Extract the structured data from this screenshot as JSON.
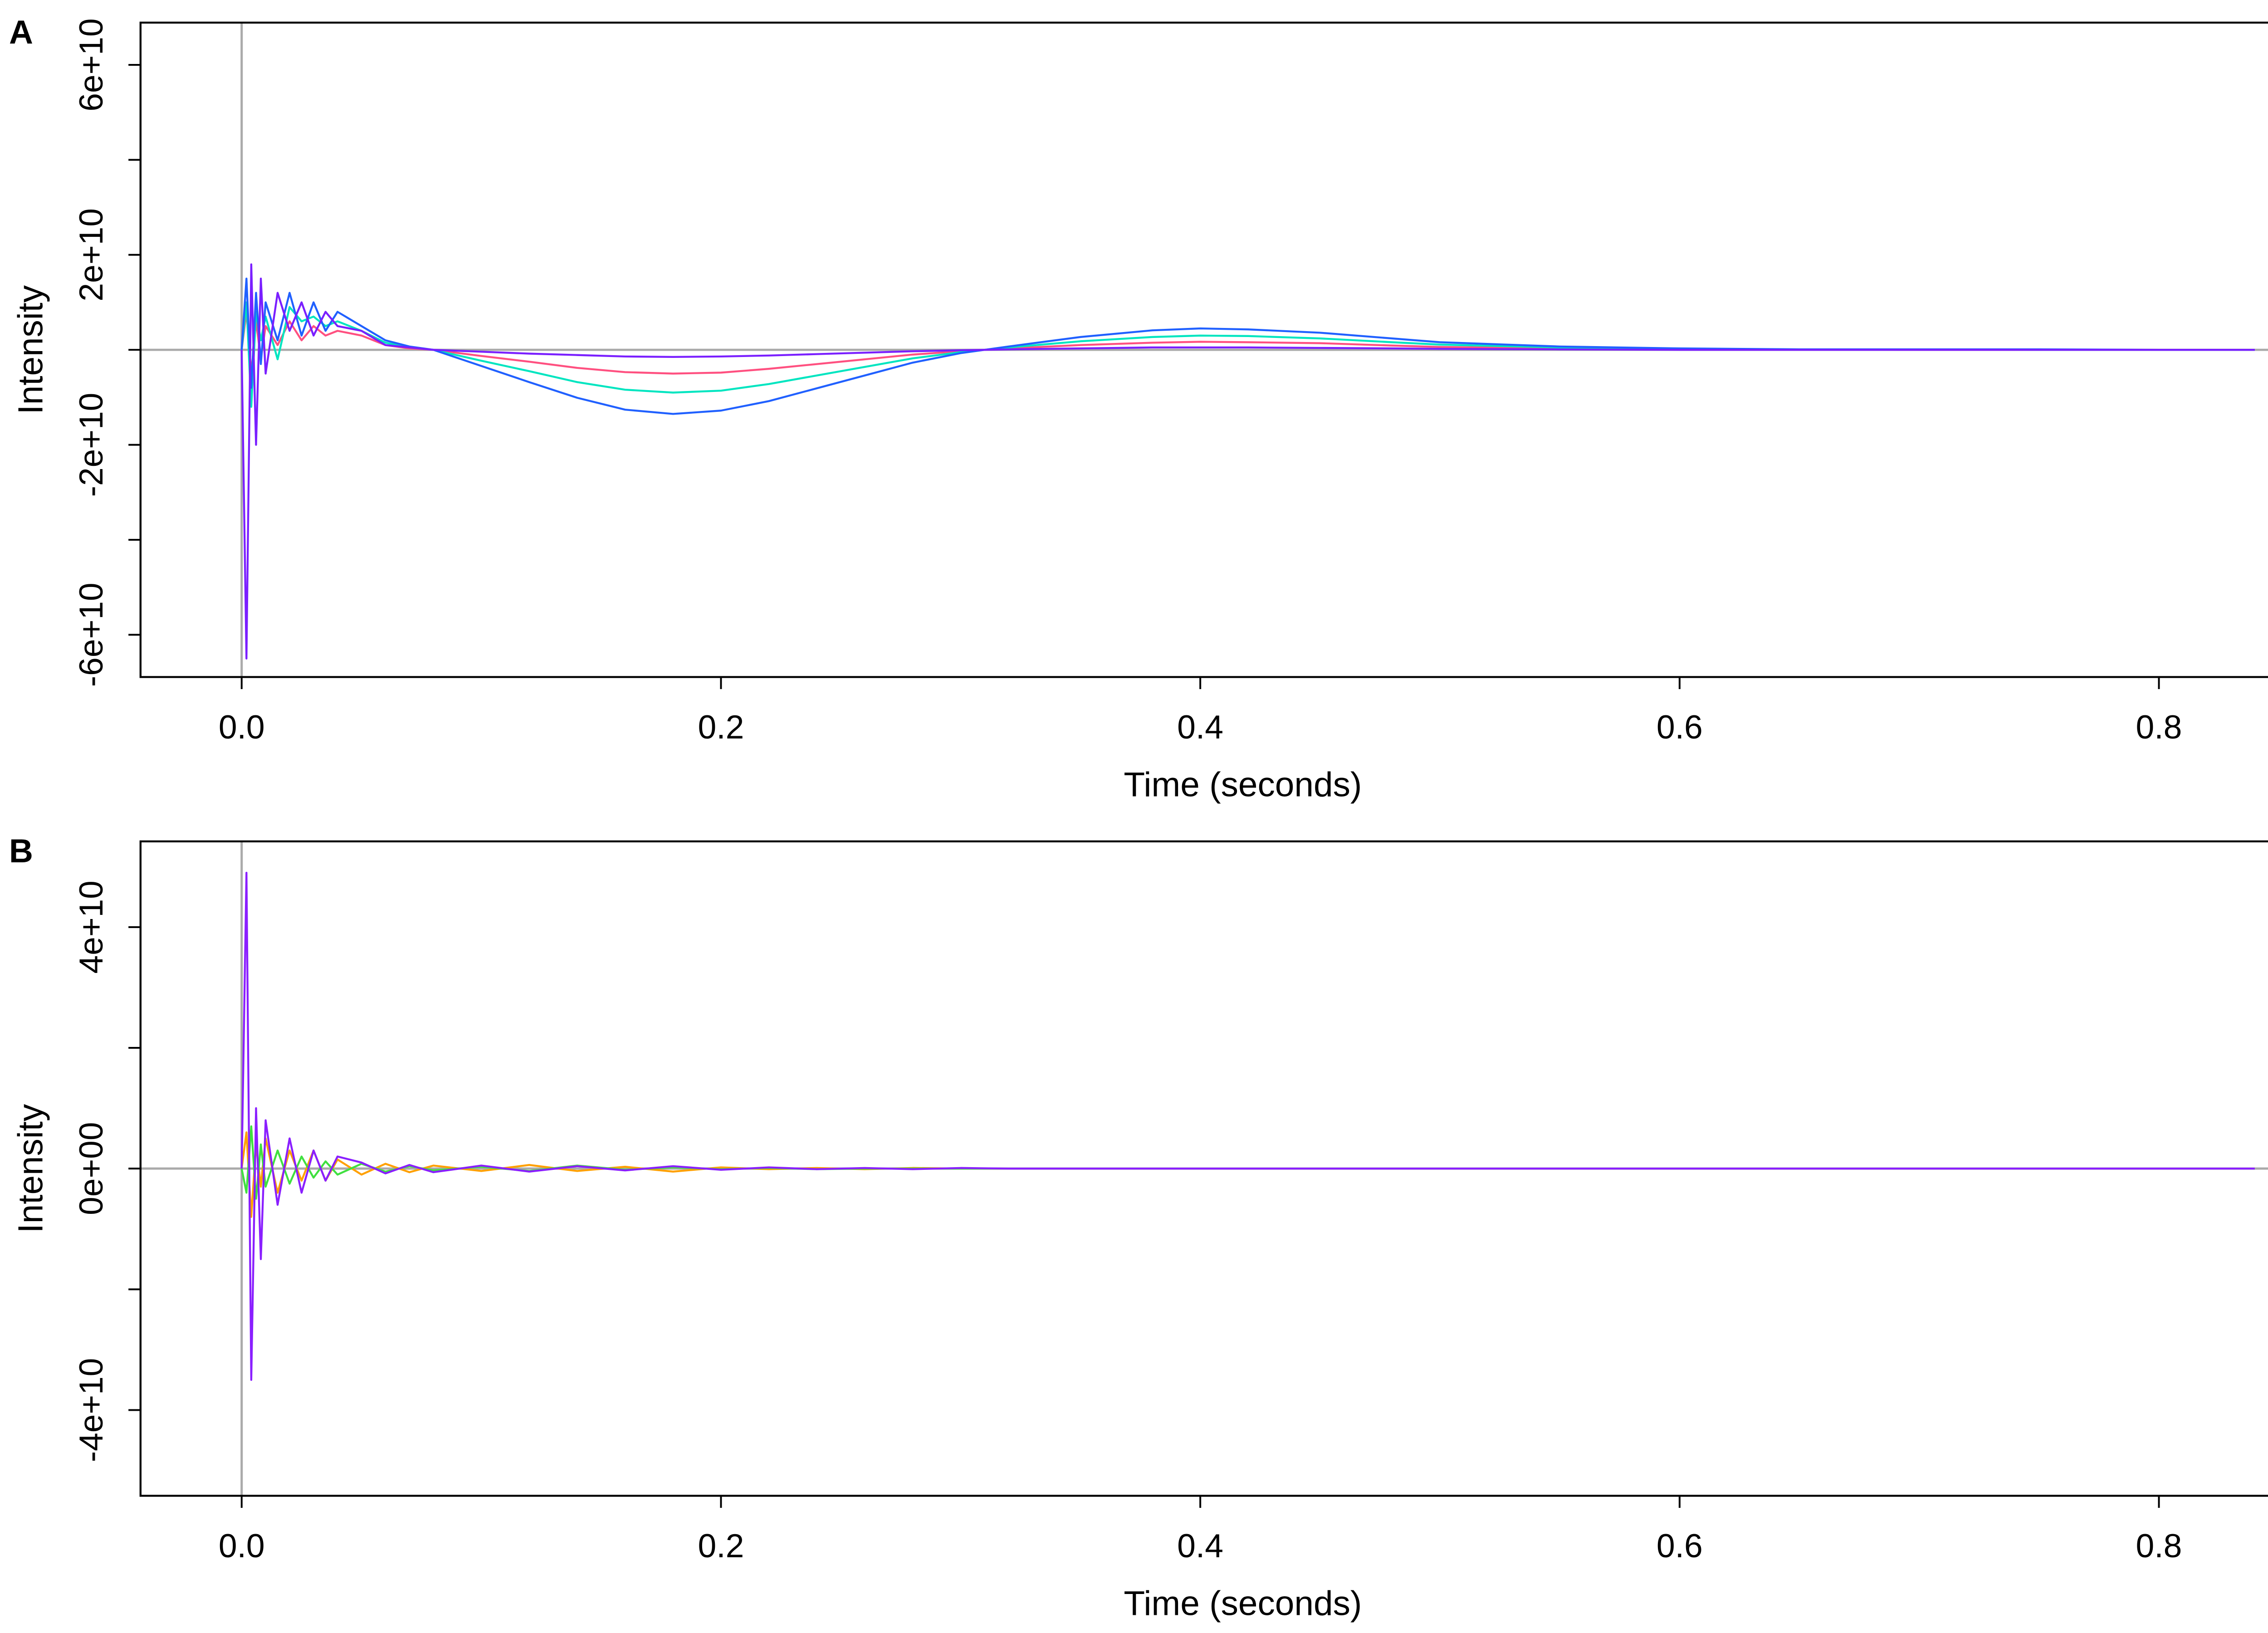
{
  "chart_data": [
    {
      "type": "line",
      "panel_label": "A",
      "xlabel": "Time (seconds)",
      "ylabel": "Intensity",
      "xlim": [
        -0.0422,
        0.8777
      ],
      "ylim": [
        -68900000000.0,
        68900000000.0
      ],
      "xticks": [
        {
          "value": 0,
          "label": "0.0"
        },
        0.2,
        0.4,
        0.6,
        0.8
      ],
      "yticks": [
        {
          "value": -60000000000.0,
          "label": "-6e+10"
        },
        {
          "value": -40000000000.0,
          "label": null
        },
        {
          "value": -20000000000.0,
          "label": "-2e+10"
        },
        {
          "value": 0,
          "label": null
        },
        {
          "value": 20000000000.0,
          "label": "2e+10"
        },
        {
          "value": 40000000000.0,
          "label": null
        },
        {
          "value": 60000000000.0,
          "label": "6e+10"
        }
      ],
      "hline": 0,
      "vline": 0,
      "x": [
        0,
        0.002,
        0.004,
        0.006,
        0.008,
        0.01,
        0.015,
        0.02,
        0.025,
        0.03,
        0.035,
        0.04,
        0.05,
        0.06,
        0.07,
        0.08,
        0.1,
        0.12,
        0.14,
        0.16,
        0.18,
        0.2,
        0.22,
        0.24,
        0.26,
        0.28,
        0.3,
        0.32,
        0.35,
        0.38,
        0.4,
        0.42,
        0.45,
        0.48,
        0.5,
        0.55,
        0.6,
        0.65,
        0.7,
        0.75,
        0.8,
        0.84
      ],
      "series": [
        {
          "color": "#ff5080",
          "values": [
            0,
            8000000000.0,
            -5000000000.0,
            6000000000.0,
            -2000000000.0,
            5000000000.0,
            1000000000.0,
            6000000000.0,
            2000000000.0,
            5000000000.0,
            3000000000.0,
            4000000000.0,
            3000000000.0,
            1000000000.0,
            300000000.0,
            0,
            -1300000000.0,
            -2500000000.0,
            -3800000000.0,
            -4700000000.0,
            -5000000000.0,
            -4800000000.0,
            -4000000000.0,
            -3000000000.0,
            -2000000000.0,
            -1000000000.0,
            -300000000.0,
            300000000.0,
            1000000000.0,
            1500000000.0,
            1700000000.0,
            1600000000.0,
            1400000000.0,
            900000000.0,
            600000000.0,
            300000000.0,
            100000000.0,
            100000000.0,
            0,
            0,
            0,
            0
          ]
        },
        {
          "color": "#00e5c0",
          "values": [
            0,
            10000000000.0,
            -12000000000.0,
            8000000000.0,
            2000000000.0,
            7000000000.0,
            -2000000000.0,
            9000000000.0,
            6000000000.0,
            7000000000.0,
            5000000000.0,
            6000000000.0,
            4000000000.0,
            1500000000.0,
            500000000.0,
            0,
            -2300000000.0,
            -4500000000.0,
            -6800000000.0,
            -8400000000.0,
            -9000000000.0,
            -8600000000.0,
            -7200000000.0,
            -5400000000.0,
            -3600000000.0,
            -1800000000.0,
            -500000000.0,
            500000000.0,
            1800000000.0,
            2700000000.0,
            3000000000.0,
            2900000000.0,
            2400000000.0,
            1600000000.0,
            1100000000.0,
            500000000.0,
            200000000.0,
            100000000.0,
            100000000.0,
            0,
            0,
            0
          ]
        },
        {
          "color": "#2060ff",
          "values": [
            0,
            15000000000.0,
            -8000000000.0,
            12000000000.0,
            -3000000000.0,
            10000000000.0,
            2000000000.0,
            12000000000.0,
            3000000000.0,
            10000000000.0,
            4000000000.0,
            8000000000.0,
            5000000000.0,
            2000000000.0,
            700000000.0,
            0,
            -3400000000.0,
            -6800000000.0,
            -10100000000.0,
            -12600000000.0,
            -13500000000.0,
            -12800000000.0,
            -10800000000.0,
            -8100000000.0,
            -5400000000.0,
            -2700000000.0,
            -700000000.0,
            700000000.0,
            2700000000.0,
            4100000000.0,
            4500000000.0,
            4300000000.0,
            3600000000.0,
            2400000000.0,
            1600000000.0,
            700000000.0,
            300000000.0,
            100000000.0,
            100000000.0,
            100000000.0,
            0,
            0
          ]
        },
        {
          "color": "#7a1fff",
          "values": [
            0,
            -65000000000.0,
            18000000000.0,
            -20000000000.0,
            15000000000.0,
            -5000000000.0,
            12000000000.0,
            4000000000.0,
            10000000000.0,
            3000000000.0,
            8000000000.0,
            5000000000.0,
            4000000000.0,
            1000000000.0,
            500000000.0,
            0,
            -400000000.0,
            -800000000.0,
            -1100000000.0,
            -1400000000.0,
            -1500000000.0,
            -1400000000.0,
            -1200000000.0,
            -900000000.0,
            -600000000.0,
            -300000000.0,
            -100000000.0,
            100000000.0,
            300000000.0,
            500000000.0,
            500000000.0,
            500000000.0,
            400000000.0,
            300000000.0,
            200000000.0,
            100000000.0,
            0,
            0,
            0,
            0,
            0,
            0
          ]
        }
      ]
    },
    {
      "type": "line",
      "panel_label": "B",
      "xlabel": "Time (seconds)",
      "ylabel": "Intensity",
      "xlim": [
        -0.0422,
        0.8777
      ],
      "ylim": [
        -54200000000.0,
        54200000000.0
      ],
      "xticks": [
        {
          "value": 0,
          "label": "0.0"
        },
        0.2,
        0.4,
        0.6,
        0.8
      ],
      "yticks": [
        {
          "value": -40000000000.0,
          "label": "-4e+10"
        },
        {
          "value": -20000000000.0,
          "label": null
        },
        {
          "value": 0,
          "label": "0e+00"
        },
        {
          "value": 20000000000.0,
          "label": null
        },
        {
          "value": 40000000000.0,
          "label": "4e+10"
        }
      ],
      "hline": 0,
      "vline": 0,
      "x": [
        0,
        0.002,
        0.004,
        0.006,
        0.008,
        0.01,
        0.015,
        0.02,
        0.025,
        0.03,
        0.035,
        0.04,
        0.05,
        0.06,
        0.07,
        0.08,
        0.1,
        0.12,
        0.14,
        0.16,
        0.18,
        0.2,
        0.22,
        0.24,
        0.26,
        0.28,
        0.3,
        0.32,
        0.35,
        0.38,
        0.4,
        0.42,
        0.45,
        0.48,
        0.5,
        0.55,
        0.6,
        0.65,
        0.7,
        0.75,
        0.8,
        0.84
      ],
      "series": [
        {
          "color": "#ffa000",
          "values": [
            0,
            6000000000.0,
            -8000000000.0,
            4000000000.0,
            -3000000000.0,
            5000000000.0,
            -4000000000.0,
            3000000000.0,
            -2000000000.0,
            3000000000.0,
            -2000000000.0,
            1500000000.0,
            -1000000000.0,
            800000000.0,
            -600000000.0,
            500000000.0,
            -400000000.0,
            600000000.0,
            -400000000.0,
            300000000.0,
            -500000000.0,
            200000000.0,
            -100000000.0,
            100000000.0,
            -100000000.0,
            100000000.0,
            0,
            0,
            0,
            0,
            0,
            0,
            0,
            0,
            0,
            0,
            0,
            0,
            0,
            0,
            0,
            0
          ]
        },
        {
          "color": "#40e040",
          "values": [
            0,
            -4000000000.0,
            7000000000.0,
            -5000000000.0,
            4000000000.0,
            -3000000000.0,
            3000000000.0,
            -2500000000.0,
            2000000000.0,
            -1500000000.0,
            1200000000.0,
            -1000000000.0,
            800000000.0,
            -500000000.0,
            400000000.0,
            -300000000.0,
            300000000.0,
            -400000000.0,
            500000000.0,
            -200000000.0,
            200000000.0,
            -100000000.0,
            100000000.0,
            -100000000.0,
            0,
            0,
            0,
            0,
            0,
            0,
            0,
            0,
            0,
            0,
            0,
            0,
            0,
            0,
            0,
            0,
            0,
            0
          ]
        },
        {
          "color": "#8a1fff",
          "values": [
            0,
            49000000000.0,
            -35000000000.0,
            10000000000.0,
            -15000000000.0,
            8000000000.0,
            -6000000000.0,
            5000000000.0,
            -4000000000.0,
            3000000000.0,
            -2000000000.0,
            2000000000.0,
            1000000000.0,
            -800000000.0,
            600000000.0,
            -600000000.0,
            500000000.0,
            -500000000.0,
            400000000.0,
            -300000000.0,
            400000000.0,
            -200000000.0,
            200000000.0,
            -100000000.0,
            100000000.0,
            -100000000.0,
            100000000.0,
            0,
            0,
            0,
            0,
            0,
            0,
            0,
            0,
            0,
            0,
            0,
            0,
            0,
            0,
            0
          ]
        }
      ]
    }
  ]
}
